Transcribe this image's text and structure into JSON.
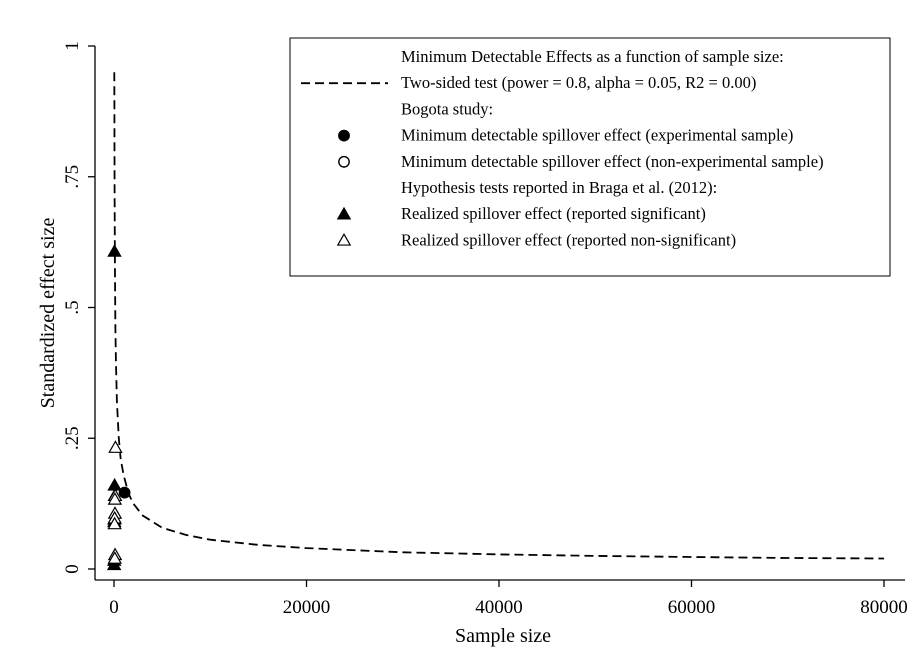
{
  "chart_data": {
    "type": "scatter",
    "xlabel": "Sample size",
    "ylabel": "Standardized effect size",
    "xlim": [
      0,
      80000
    ],
    "ylim": [
      0,
      1
    ],
    "x_ticks": [
      {
        "value": 0,
        "label": "0"
      },
      {
        "value": 20000,
        "label": "20000"
      },
      {
        "value": 40000,
        "label": "40000"
      },
      {
        "value": 60000,
        "label": "60000"
      },
      {
        "value": 80000,
        "label": "80000"
      }
    ],
    "y_ticks": [
      {
        "value": 0,
        "label": "0"
      },
      {
        "value": 0.25,
        "label": ".25"
      },
      {
        "value": 0.5,
        "label": ".5"
      },
      {
        "value": 0.75,
        "label": ".75"
      },
      {
        "value": 1,
        "label": "1"
      }
    ],
    "grid": false,
    "legend_position": "top-right",
    "mde_curve": {
      "name": "Two-sided test (power = 0.8, alpha = 0.05, R2 = 0.00)",
      "style": "dashed",
      "x": [
        35,
        40,
        50,
        60,
        80,
        100,
        150,
        200,
        300,
        500,
        700,
        1000,
        1500,
        2000,
        3000,
        5000,
        7500,
        10000,
        15000,
        20000,
        30000,
        40000,
        50000,
        60000,
        70000,
        80000
      ],
      "y": [
        0.95,
        0.89,
        0.79,
        0.72,
        0.63,
        0.56,
        0.46,
        0.4,
        0.32,
        0.25,
        0.21,
        0.18,
        0.145,
        0.125,
        0.102,
        0.079,
        0.065,
        0.056,
        0.046,
        0.04,
        0.032,
        0.028,
        0.025,
        0.023,
        0.021,
        0.02
      ]
    },
    "series": [
      {
        "name": "Minimum detectable spillover effect (experimental sample)",
        "marker": "filled-circle",
        "points": [
          {
            "x": 1100,
            "y": 0.146
          }
        ]
      },
      {
        "name": "Minimum detectable spillover effect (non-experimental sample)",
        "marker": "hollow-circle",
        "points": []
      },
      {
        "name": "Realized spillover effect (reported significant)",
        "marker": "filled-triangle",
        "points": [
          {
            "x": 50,
            "y": 0.607
          },
          {
            "x": 60,
            "y": 0.16
          },
          {
            "x": 80,
            "y": 0.14
          },
          {
            "x": 40,
            "y": 0.095
          },
          {
            "x": 30,
            "y": 0.09
          },
          {
            "x": 20,
            "y": 0.016
          },
          {
            "x": 15,
            "y": 0.008
          }
        ]
      },
      {
        "name": "Realized spillover effect (reported non-significant)",
        "marker": "hollow-triangle",
        "points": [
          {
            "x": 150,
            "y": 0.232
          },
          {
            "x": 120,
            "y": 0.14
          },
          {
            "x": 90,
            "y": 0.133
          },
          {
            "x": 100,
            "y": 0.106
          },
          {
            "x": 70,
            "y": 0.097
          },
          {
            "x": 60,
            "y": 0.086
          },
          {
            "x": 110,
            "y": 0.027
          },
          {
            "x": 80,
            "y": 0.02
          }
        ]
      }
    ],
    "legend": [
      {
        "kind": "heading",
        "text": "Minimum Detectable Effects as a function of sample size:"
      },
      {
        "kind": "dashed-line",
        "text": "Two-sided test (power = 0.8, alpha = 0.05, R2 = 0.00)"
      },
      {
        "kind": "heading",
        "text": "Bogota study:"
      },
      {
        "kind": "filled-circle",
        "text": "Minimum detectable spillover effect (experimental sample)"
      },
      {
        "kind": "hollow-circle",
        "text": "Minimum detectable spillover effect (non-experimental sample)"
      },
      {
        "kind": "heading",
        "text": "Hypothesis tests reported in Braga et al. (2012):"
      },
      {
        "kind": "filled-triangle",
        "text": "Realized spillover effect (reported significant)"
      },
      {
        "kind": "hollow-triangle",
        "text": "Realized spillover effect (reported non-significant)"
      }
    ]
  }
}
